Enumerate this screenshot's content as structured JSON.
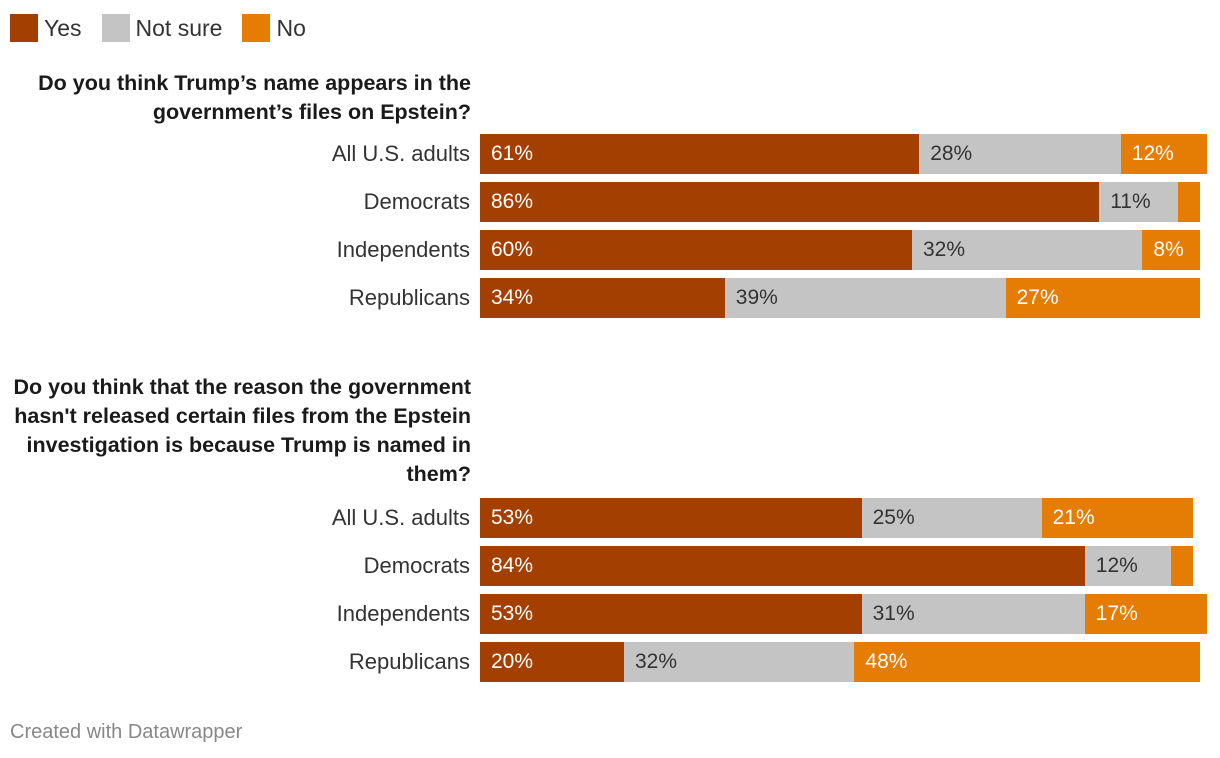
{
  "legend": [
    {
      "label": "Yes",
      "color": "#a33f00"
    },
    {
      "label": "Not sure",
      "color": "#c4c4c4"
    },
    {
      "label": "No",
      "color": "#e57c04"
    }
  ],
  "chart_data": {
    "type": "bar",
    "orientation": "horizontal",
    "stacked": true,
    "series_names": [
      "Yes",
      "Not sure",
      "No"
    ],
    "colors": [
      "#a33f00",
      "#c4c4c4",
      "#e57c04"
    ],
    "panels": [
      {
        "title": "Do you think Trump’s name appears in the government’s files on Epstein?",
        "categories": [
          "All U.S. adults",
          "Democrats",
          "Independents",
          "Republicans"
        ],
        "series": [
          {
            "name": "Yes",
            "values": [
              61,
              86,
              60,
              34
            ]
          },
          {
            "name": "Not sure",
            "values": [
              28,
              11,
              32,
              39
            ]
          },
          {
            "name": "No",
            "values": [
              12,
              3,
              8,
              27
            ]
          }
        ],
        "labels": [
          [
            "61%",
            "28%",
            "12%"
          ],
          [
            "86%",
            "11%",
            ""
          ],
          [
            "60%",
            "32%",
            "8%"
          ],
          [
            "34%",
            "39%",
            "27%"
          ]
        ]
      },
      {
        "title": "Do you think that the reason the government hasn't released certain files from the Epstein investigation is because Trump is named in them?",
        "categories": [
          "All U.S. adults",
          "Democrats",
          "Independents",
          "Republicans"
        ],
        "series": [
          {
            "name": "Yes",
            "values": [
              53,
              84,
              53,
              20
            ]
          },
          {
            "name": "Not sure",
            "values": [
              25,
              12,
              31,
              32
            ]
          },
          {
            "name": "No",
            "values": [
              21,
              3,
              17,
              48
            ]
          }
        ],
        "labels": [
          [
            "53%",
            "25%",
            "21%"
          ],
          [
            "84%",
            "12%",
            ""
          ],
          [
            "53%",
            "31%",
            "17%"
          ],
          [
            "20%",
            "32%",
            "48%"
          ]
        ]
      }
    ]
  },
  "footer": "Created with Datawrapper"
}
